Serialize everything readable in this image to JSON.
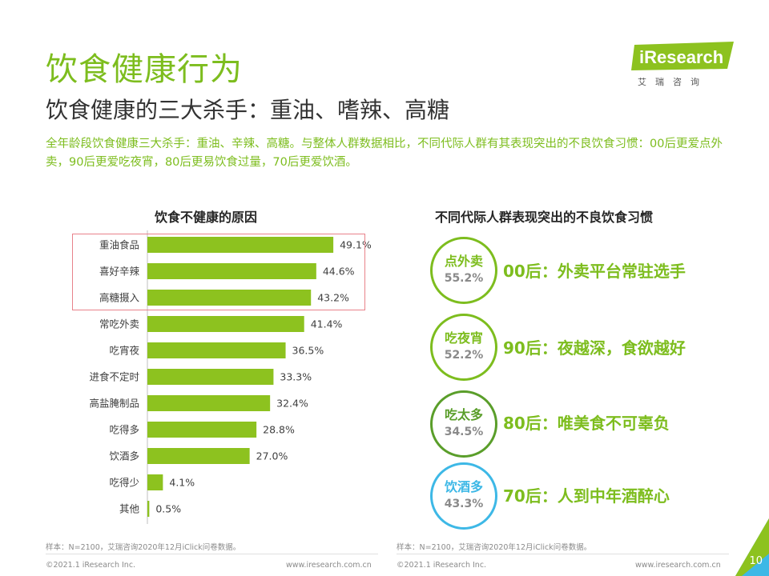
{
  "slide": {
    "title": "饮食健康行为",
    "subtitle": "饮食健康的三大杀手：重油、嗜辣、高糖",
    "description": "全年龄段饮食健康三大杀手：重油、辛辣、高糖。与整体人群数据相比，不同代际人群有其表现突出的不良饮食习惯：00后更爱点外卖，90后更爱吃夜宵，80后更易饮食过量，70后更爱饮酒。",
    "page_number": "10"
  },
  "brand": {
    "logo_text": "iResearch",
    "logo_cn": "艾瑞咨询",
    "accent_color": "#7dbd1e"
  },
  "left_panel": {
    "title": "饮食不健康的原因",
    "note": "样本：N=2100，艾瑞咨询2020年12月iClick问卷数据。"
  },
  "right_panel": {
    "title": "不同代际人群表现突出的不良饮食习惯",
    "note": "样本：N=2100，艾瑞咨询2020年12月iClick问卷数据。",
    "habits": [
      {
        "name": "点外卖",
        "pct": "55.2%",
        "text": "00后：外卖平台常驻选手",
        "color": "#7dbd1e"
      },
      {
        "name": "吃夜宵",
        "pct": "52.2%",
        "text": "90后：夜越深，食欲越好",
        "color": "#7dbd1e"
      },
      {
        "name": "吃太多",
        "pct": "34.5%",
        "text": "80后：唯美食不可辜负",
        "color": "#5a9e2a"
      },
      {
        "name": "饮酒多",
        "pct": "43.3%",
        "text": "70后：人到中年酒醉心",
        "color": "#3db8e6"
      }
    ]
  },
  "footer": {
    "copyright": "©2021.1 iResearch Inc.",
    "url": "www.iresearch.com.cn"
  },
  "chart_data": {
    "type": "bar",
    "orientation": "horizontal",
    "title": "饮食不健康的原因",
    "categories": [
      "重油食品",
      "喜好辛辣",
      "高糖摄入",
      "常吃外卖",
      "吃宵夜",
      "进食不定时",
      "高盐腌制品",
      "吃得多",
      "饮酒多",
      "吃得少",
      "其他"
    ],
    "values": [
      49.1,
      44.6,
      43.2,
      41.4,
      36.5,
      33.3,
      32.4,
      28.8,
      27.0,
      4.1,
      0.5
    ],
    "value_labels": [
      "49.1%",
      "44.6%",
      "43.2%",
      "41.4%",
      "36.5%",
      "33.3%",
      "32.4%",
      "28.8%",
      "27.0%",
      "4.1%",
      "0.5%"
    ],
    "unit": "%",
    "xlim": [
      0,
      55
    ],
    "highlighted_categories": [
      "重油食品",
      "喜好辛辣",
      "高糖摄入"
    ],
    "bar_color": "#8dc21f",
    "grid": false
  }
}
